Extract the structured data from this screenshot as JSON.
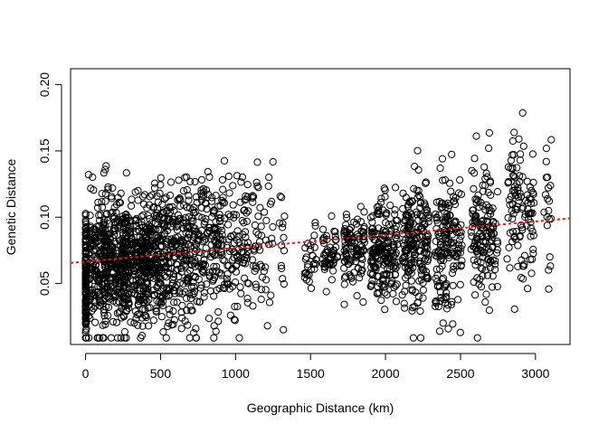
{
  "chart_data": {
    "type": "scatter",
    "title": "",
    "xlabel": "Geographic Distance (km)",
    "ylabel": "Genetic Distance",
    "xlim": [
      -100,
      3230
    ],
    "ylim": [
      0.004,
      0.212
    ],
    "x_ticks": [
      0,
      500,
      1000,
      1500,
      2000,
      2500,
      3000
    ],
    "y_ticks": [
      0.05,
      0.1,
      0.15,
      0.2
    ],
    "y_tick_labels": [
      "0.05",
      "0.10",
      "0.15",
      "0.20"
    ],
    "grid": false,
    "marker": "open-circle",
    "point_color": "#000000",
    "trend_line": {
      "style": "dotted",
      "color": "#e41a1c",
      "intercept": 0.0665,
      "slope": 1.01e-05
    },
    "point_clusters": [
      {
        "x_center": 0,
        "x_spread": 6,
        "y_mean": 0.055,
        "y_sd": 0.022,
        "n": 160
      },
      {
        "x_center": 80,
        "x_spread": 60,
        "y_mean": 0.064,
        "y_sd": 0.025,
        "n": 180
      },
      {
        "x_center": 200,
        "x_spread": 80,
        "y_mean": 0.065,
        "y_sd": 0.024,
        "n": 260
      },
      {
        "x_center": 330,
        "x_spread": 90,
        "y_mean": 0.064,
        "y_sd": 0.022,
        "n": 280
      },
      {
        "x_center": 480,
        "x_spread": 80,
        "y_mean": 0.07,
        "y_sd": 0.025,
        "n": 230
      },
      {
        "x_center": 640,
        "x_spread": 90,
        "y_mean": 0.071,
        "y_sd": 0.026,
        "n": 190
      },
      {
        "x_center": 820,
        "x_spread": 90,
        "y_mean": 0.076,
        "y_sd": 0.026,
        "n": 150
      },
      {
        "x_center": 1000,
        "x_spread": 90,
        "y_mean": 0.08,
        "y_sd": 0.027,
        "n": 110
      },
      {
        "x_center": 1180,
        "x_spread": 70,
        "y_mean": 0.082,
        "y_sd": 0.03,
        "n": 55
      },
      {
        "x_center": 1310,
        "x_spread": 20,
        "y_mean": 0.085,
        "y_sd": 0.03,
        "n": 14
      },
      {
        "x_center": 1500,
        "x_spread": 40,
        "y_mean": 0.07,
        "y_sd": 0.01,
        "n": 30
      },
      {
        "x_center": 1630,
        "x_spread": 50,
        "y_mean": 0.071,
        "y_sd": 0.011,
        "n": 50
      },
      {
        "x_center": 1790,
        "x_spread": 70,
        "y_mean": 0.073,
        "y_sd": 0.016,
        "n": 110
      },
      {
        "x_center": 1990,
        "x_spread": 90,
        "y_mean": 0.072,
        "y_sd": 0.02,
        "n": 190
      },
      {
        "x_center": 2200,
        "x_spread": 90,
        "y_mean": 0.078,
        "y_sd": 0.023,
        "n": 200
      },
      {
        "x_center": 2420,
        "x_spread": 90,
        "y_mean": 0.082,
        "y_sd": 0.026,
        "n": 170
      },
      {
        "x_center": 2660,
        "x_spread": 90,
        "y_mean": 0.09,
        "y_sd": 0.026,
        "n": 150
      },
      {
        "x_center": 2900,
        "x_spread": 90,
        "y_mean": 0.105,
        "y_sd": 0.028,
        "n": 110
      },
      {
        "x_center": 3080,
        "x_spread": 25,
        "y_mean": 0.112,
        "y_sd": 0.022,
        "n": 20
      }
    ]
  }
}
